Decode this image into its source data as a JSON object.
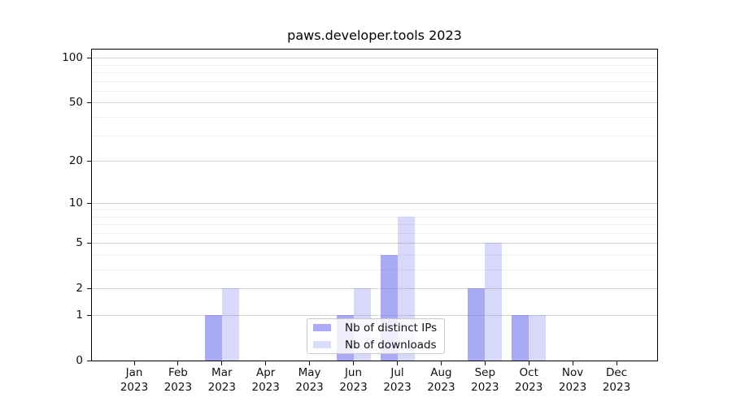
{
  "title": "paws.developer.tools 2023",
  "background": "#ffffff",
  "chart_data": {
    "type": "bar",
    "title": "paws.developer.tools 2023",
    "categories": [
      "Jan 2023",
      "Feb 2023",
      "Mar 2023",
      "Apr 2023",
      "May 2023",
      "Jun 2023",
      "Jul 2023",
      "Aug 2023",
      "Sep 2023",
      "Oct 2023",
      "Nov 2023",
      "Dec 2023"
    ],
    "series": [
      {
        "name": "Nb of distinct IPs",
        "color": "#a9aaf8",
        "fill": "rgba(100,105,235,0.56)",
        "values": [
          0,
          0,
          1,
          0,
          0,
          1,
          4,
          0,
          2,
          1,
          0,
          0
        ]
      },
      {
        "name": "Nb of downloads",
        "color": "#dadcfb",
        "fill": "rgba(100,105,235,0.25)",
        "values": [
          0,
          0,
          2,
          0,
          0,
          2,
          8,
          0,
          5,
          1,
          0,
          0
        ]
      }
    ],
    "y_axis": {
      "scale": "log10(value+1)",
      "ticks": [
        0,
        1,
        2,
        5,
        10,
        20,
        50,
        100
      ],
      "minor_gridlines": [
        3,
        4,
        6,
        7,
        8,
        9,
        30,
        40,
        60,
        70,
        80,
        90
      ],
      "ylim": [
        0,
        113.6
      ]
    },
    "x_axis": {
      "tick_labels_two_lines": true
    },
    "grid": true,
    "legend_position": "lower center"
  },
  "legend": {
    "entries": [
      "Nb of distinct IPs",
      "Nb of downloads"
    ]
  }
}
